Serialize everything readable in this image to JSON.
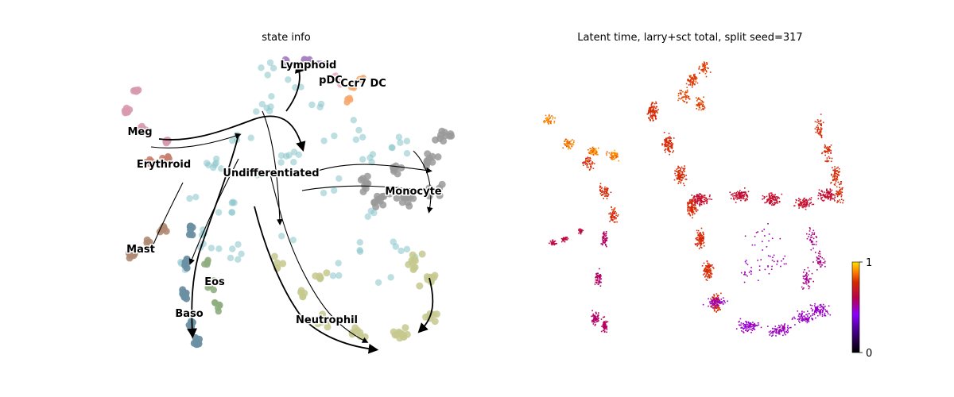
{
  "chart_data": [
    {
      "type": "scatter",
      "title": "state info",
      "xlabel": "",
      "ylabel": "",
      "axes_visible": false,
      "legend": "on data",
      "overlay": "velocity streamlines with arrowheads",
      "clusters": [
        {
          "label": "Lymphoid",
          "color": "#a783c2"
        },
        {
          "label": "pDC",
          "color": "#f2b0c4"
        },
        {
          "label": "Ccr7 DC",
          "color": "#f6a86e"
        },
        {
          "label": "Meg",
          "color": "#d89aad"
        },
        {
          "label": "Erythroid",
          "color": "#c9816f"
        },
        {
          "label": "Undifferentiated",
          "color": "#87c4cb"
        },
        {
          "label": "Monocyte",
          "color": "#9a9a9a"
        },
        {
          "label": "Mast",
          "color": "#b08a72"
        },
        {
          "label": "Eos",
          "color": "#8fae80"
        },
        {
          "label": "Baso",
          "color": "#6b8fa3"
        },
        {
          "label": "Neutrophil",
          "color": "#c5c98e"
        }
      ]
    },
    {
      "type": "scatter",
      "title": "Latent time, larry+sct total, split seed=317",
      "xlabel": "",
      "ylabel": "",
      "axes_visible": false,
      "colorbar": {
        "min": 0,
        "max": 1,
        "ticks": [
          {
            "value": 0,
            "label": "0"
          },
          {
            "value": 1,
            "label": "1"
          }
        ],
        "colormap": "gnuplot"
      }
    }
  ]
}
